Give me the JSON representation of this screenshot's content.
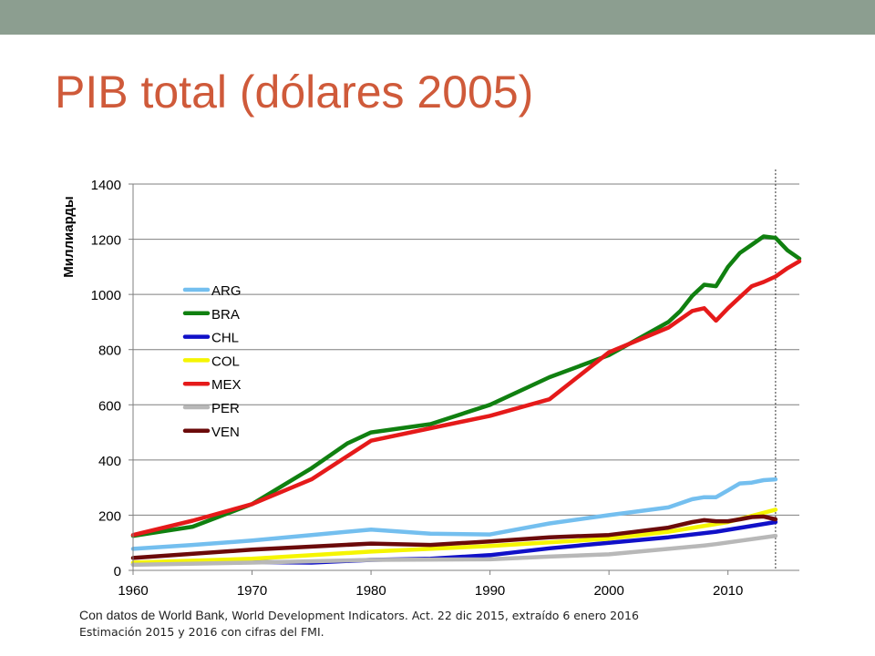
{
  "slide": {
    "title": "PIB total (dólares 2005)",
    "bar_color": "#8c9e90",
    "title_color": "#cf5a3a"
  },
  "footnotes": {
    "source_prefix": "Con datos de World Bank",
    "source_rest": ", World Development Indicators. Act. 22 dic 2015, extraído 6 enero 2016",
    "estimate": "Estimación 2015 y 2016 con cifras del FMI."
  },
  "chart_data": {
    "type": "line",
    "title": "",
    "xlabel": "",
    "ylabel": "Миллиарды",
    "xlim": [
      1960,
      2016
    ],
    "ylim": [
      0,
      1400
    ],
    "xticks": [
      1960,
      1970,
      1980,
      1990,
      2000,
      2010
    ],
    "yticks": [
      0,
      200,
      400,
      600,
      800,
      1000,
      1200,
      1400
    ],
    "grid": "horizontal",
    "legend": "left",
    "estimate_marker_x": 2014,
    "series": [
      {
        "name": "ARG",
        "color": "#74bfef",
        "x": [
          1960,
          1965,
          1970,
          1975,
          1980,
          1985,
          1990,
          1995,
          2000,
          2005,
          2007,
          2008,
          2009,
          2010,
          2011,
          2012,
          2013,
          2014
        ],
        "y": [
          78,
          92,
          108,
          128,
          148,
          133,
          130,
          170,
          200,
          228,
          258,
          265,
          265,
          290,
          315,
          318,
          327,
          330
        ]
      },
      {
        "name": "BRA",
        "color": "#108010",
        "x": [
          1960,
          1965,
          1970,
          1975,
          1978,
          1980,
          1985,
          1990,
          1995,
          2000,
          2005,
          2006,
          2007,
          2008,
          2009,
          2010,
          2011,
          2012,
          2013,
          2014,
          2015,
          2016
        ],
        "y": [
          125,
          158,
          240,
          370,
          460,
          500,
          530,
          600,
          700,
          780,
          900,
          940,
          995,
          1035,
          1030,
          1100,
          1150,
          1180,
          1210,
          1205,
          1160,
          1130
        ]
      },
      {
        "name": "CHL",
        "color": "#1010c8",
        "x": [
          1960,
          1970,
          1975,
          1980,
          1985,
          1990,
          1995,
          2000,
          2005,
          2009,
          2014
        ],
        "y": [
          22,
          30,
          28,
          38,
          42,
          55,
          80,
          100,
          120,
          140,
          175
        ]
      },
      {
        "name": "COL",
        "color": "#f5f500",
        "x": [
          1960,
          1970,
          1980,
          1990,
          2000,
          2005,
          2010,
          2014
        ],
        "y": [
          28,
          42,
          68,
          88,
          115,
          140,
          175,
          220
        ]
      },
      {
        "name": "MEX",
        "color": "#e51a1a",
        "x": [
          1960,
          1965,
          1970,
          1975,
          1980,
          1985,
          1990,
          1995,
          2000,
          2005,
          2007,
          2008,
          2009,
          2010,
          2011,
          2012,
          2013,
          2014,
          2015,
          2016
        ],
        "y": [
          128,
          180,
          240,
          330,
          470,
          515,
          560,
          620,
          790,
          880,
          940,
          950,
          905,
          950,
          990,
          1030,
          1045,
          1065,
          1095,
          1120
        ]
      },
      {
        "name": "PER",
        "color": "#b8b8b8",
        "x": [
          1960,
          1970,
          1980,
          1990,
          1995,
          2000,
          2005,
          2008,
          2009,
          2014
        ],
        "y": [
          20,
          28,
          38,
          40,
          50,
          58,
          78,
          90,
          95,
          125
        ]
      },
      {
        "name": "VEN",
        "color": "#6b0a0a",
        "x": [
          1960,
          1970,
          1980,
          1985,
          1990,
          1995,
          2000,
          2005,
          2007,
          2008,
          2009,
          2010,
          2011,
          2012,
          2013,
          2014
        ],
        "y": [
          45,
          75,
          97,
          92,
          105,
          120,
          128,
          155,
          175,
          182,
          178,
          178,
          185,
          193,
          195,
          185
        ]
      }
    ]
  }
}
